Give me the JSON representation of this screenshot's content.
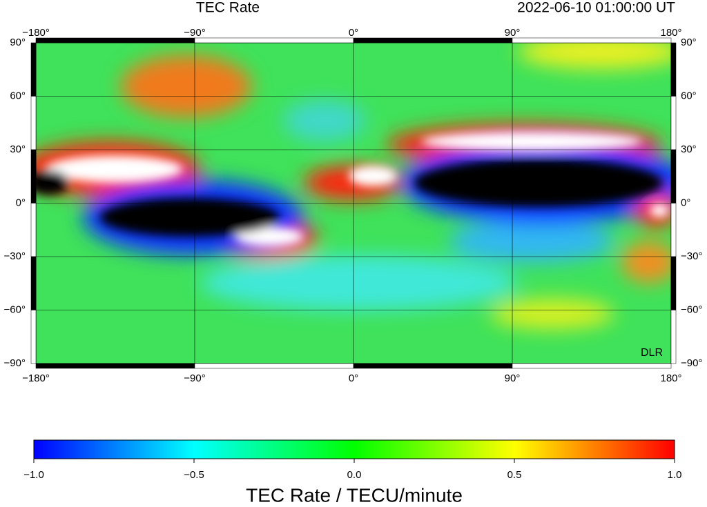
{
  "map": {
    "title": "TEC Rate",
    "timestamp": "2022-06-10  01:00:00 UT",
    "credit": "DLR",
    "xlim": [
      -180,
      180
    ],
    "ylim": [
      -90,
      90
    ],
    "lon_ticks": [
      {
        "value": -180,
        "label": "−180°"
      },
      {
        "value": -90,
        "label": "−90°"
      },
      {
        "value": 0,
        "label": "0°"
      },
      {
        "value": 90,
        "label": "90°"
      },
      {
        "value": 180,
        "label": "180°"
      }
    ],
    "lat_ticks": [
      {
        "value": 90,
        "label": "90°"
      },
      {
        "value": 60,
        "label": "60°"
      },
      {
        "value": 30,
        "label": "30°"
      },
      {
        "value": 0,
        "label": "0°"
      },
      {
        "value": -30,
        "label": "−30°"
      },
      {
        "value": -60,
        "label": "−60°"
      },
      {
        "value": -90,
        "label": "−90°"
      }
    ]
  },
  "colorbar": {
    "label": "TEC Rate / TECU/minute",
    "lim": [
      -1,
      1
    ],
    "colors": [
      "#0000ff",
      "#00ffff",
      "#00ff00",
      "#ffff00",
      "#ff0000"
    ],
    "ticks": [
      {
        "value": -1,
        "label": "−1.0"
      },
      {
        "value": -0.5,
        "label": "−0.5"
      },
      {
        "value": 0,
        "label": "0.0"
      },
      {
        "value": 0.5,
        "label": "0.5"
      },
      {
        "value": 1,
        "label": "1.0"
      }
    ]
  }
}
